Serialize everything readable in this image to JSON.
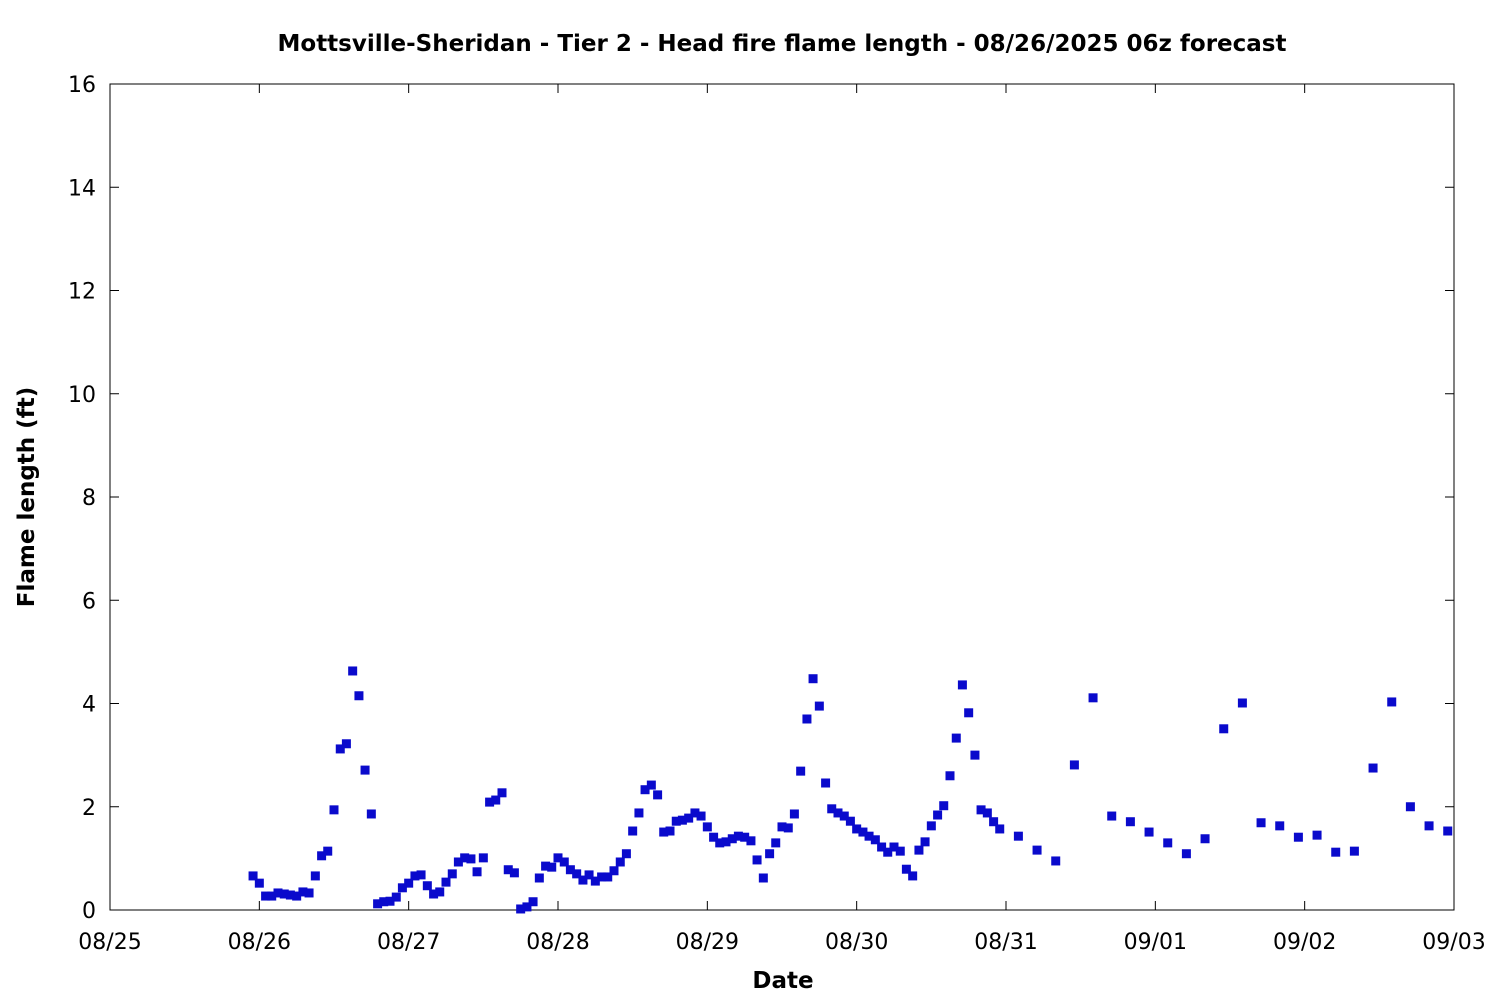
{
  "chart_data": {
    "type": "scatter",
    "title": "Mottsville-Sheridan - Tier 2 - Head fire flame length - 08/26/2025 06z forecast",
    "x_label": "Date",
    "y_label": "Flame length (ft)",
    "color": "#0a0acc",
    "xlim": [
      0,
      9
    ],
    "ylim": [
      0,
      16
    ],
    "xticks": [
      {
        "value": 0,
        "label": "08/25"
      },
      {
        "value": 1,
        "label": "08/26"
      },
      {
        "value": 2,
        "label": "08/27"
      },
      {
        "value": 3,
        "label": "08/28"
      },
      {
        "value": 4,
        "label": "08/29"
      },
      {
        "value": 5,
        "label": "08/30"
      },
      {
        "value": 6,
        "label": "08/31"
      },
      {
        "value": 7,
        "label": "09/01"
      },
      {
        "value": 8,
        "label": "09/02"
      },
      {
        "value": 9,
        "label": "09/03"
      }
    ],
    "yticks": [
      0,
      2,
      4,
      6,
      8,
      10,
      12,
      14,
      16
    ],
    "x": [
      0.958,
      1,
      1.042,
      1.083,
      1.125,
      1.167,
      1.208,
      1.25,
      1.292,
      1.333,
      1.375,
      1.417,
      1.458,
      1.5,
      1.542,
      1.583,
      1.625,
      1.667,
      1.708,
      1.75,
      1.792,
      1.833,
      1.875,
      1.917,
      1.958,
      2,
      2.042,
      2.083,
      2.125,
      2.167,
      2.208,
      2.25,
      2.292,
      2.333,
      2.375,
      2.417,
      2.458,
      2.5,
      2.542,
      2.583,
      2.625,
      2.667,
      2.708,
      2.75,
      2.792,
      2.833,
      2.875,
      2.917,
      2.958,
      3,
      3.042,
      3.083,
      3.125,
      3.167,
      3.208,
      3.25,
      3.292,
      3.333,
      3.375,
      3.417,
      3.458,
      3.5,
      3.542,
      3.583,
      3.625,
      3.667,
      3.708,
      3.75,
      3.792,
      3.833,
      3.875,
      3.917,
      3.958,
      4,
      4.042,
      4.083,
      4.125,
      4.167,
      4.208,
      4.25,
      4.292,
      4.333,
      4.375,
      4.417,
      4.458,
      4.5,
      4.542,
      4.583,
      4.625,
      4.667,
      4.708,
      4.75,
      4.792,
      4.833,
      4.875,
      4.917,
      4.958,
      5,
      5.042,
      5.083,
      5.125,
      5.167,
      5.208,
      5.25,
      5.292,
      5.333,
      5.375,
      5.417,
      5.458,
      5.5,
      5.542,
      5.583,
      5.625,
      5.667,
      5.708,
      5.75,
      5.792,
      5.833,
      5.875,
      5.917,
      5.958,
      6.083,
      6.208,
      6.333,
      6.458,
      6.583,
      6.708,
      6.833,
      6.958,
      7.083,
      7.208,
      7.333,
      7.458,
      7.583,
      7.708,
      7.833,
      7.958,
      8.083,
      8.208,
      8.333,
      8.458,
      8.583,
      8.708,
      8.833,
      8.958
    ],
    "values": [
      0.66,
      0.52,
      0.27,
      0.27,
      0.33,
      0.31,
      0.29,
      0.27,
      0.35,
      0.33,
      0.66,
      1.05,
      1.14,
      1.94,
      3.12,
      3.22,
      4.63,
      4.15,
      2.71,
      1.86,
      0.12,
      0.16,
      0.17,
      0.25,
      0.43,
      0.52,
      0.66,
      0.68,
      0.47,
      0.31,
      0.35,
      0.54,
      0.7,
      0.93,
      1.01,
      0.99,
      0.74,
      1.01,
      2.09,
      2.13,
      2.27,
      0.78,
      0.72,
      0.02,
      0.06,
      0.16,
      0.62,
      0.85,
      0.83,
      1.01,
      0.93,
      0.78,
      0.7,
      0.58,
      0.68,
      0.56,
      0.64,
      0.64,
      0.76,
      0.93,
      1.09,
      1.53,
      1.88,
      2.33,
      2.42,
      2.23,
      1.51,
      1.53,
      1.72,
      1.74,
      1.78,
      1.88,
      1.82,
      1.61,
      1.41,
      1.3,
      1.32,
      1.38,
      1.43,
      1.41,
      1.34,
      0.97,
      0.62,
      1.09,
      1.3,
      1.61,
      1.59,
      1.86,
      2.69,
      3.7,
      4.48,
      3.95,
      2.46,
      1.96,
      1.88,
      1.82,
      1.72,
      1.57,
      1.51,
      1.43,
      1.36,
      1.22,
      1.12,
      1.22,
      1.14,
      0.79,
      0.66,
      1.16,
      1.32,
      1.63,
      1.84,
      2.02,
      2.6,
      3.33,
      4.36,
      3.82,
      3.0,
      1.94,
      1.88,
      1.71,
      1.57,
      1.43,
      1.16,
      0.95,
      2.81,
      4.11,
      1.82,
      1.71,
      1.51,
      1.3,
      1.09,
      1.38,
      3.51,
      4.01,
      1.69,
      1.63,
      1.41,
      1.45,
      1.12,
      1.14,
      2.75,
      4.03,
      2.0,
      1.63,
      1.53
    ]
  }
}
